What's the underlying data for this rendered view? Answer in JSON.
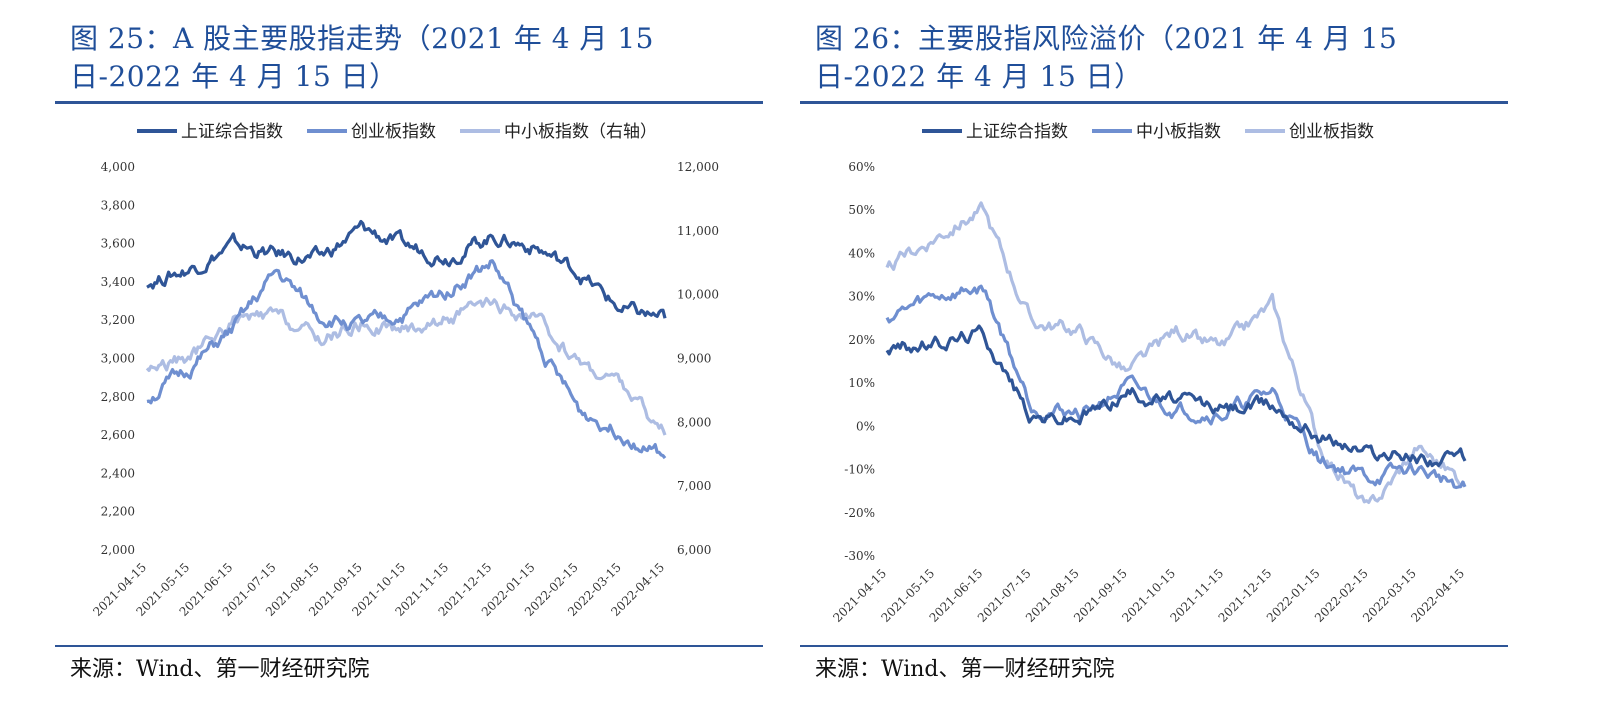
{
  "left": {
    "title": "图 25：A 股主要股指走势（2021 年 4 月 15 日-2022 年 4 月 15 日）",
    "source": "来源：Wind、第一财经研究院"
  },
  "right": {
    "title": "图 26：主要股指风险溢价（2021 年 4 月 15 日-2022 年 4 月 15 日）",
    "source": "来源：Wind、第一财经研究院"
  },
  "colors": {
    "dark": "#2f5597",
    "mid": "#6f8fd0",
    "light": "#adbde3",
    "rule": "#2e5597",
    "title": "#1f4e99"
  },
  "chart_data": [
    {
      "type": "line",
      "x": [
        "2021-04-15",
        "2021-05-15",
        "2021-06-15",
        "2021-07-15",
        "2021-08-15",
        "2021-09-15",
        "2021-10-15",
        "2021-11-15",
        "2021-12-15",
        "2022-01-15",
        "2022-02-15",
        "2022-03-15",
        "2022-04-15"
      ],
      "xticks": [
        "2021-04-15",
        "2021-05-15",
        "2021-06-15",
        "2021-07-15",
        "2021-08-15",
        "2021-09-15",
        "2021-10-15",
        "2021-11-15",
        "2021-12-15",
        "2022-01-15",
        "2022-02-15",
        "2022-03-15",
        "2022-04-15"
      ],
      "yticks": [
        "2,000",
        "2,200",
        "2,400",
        "2,600",
        "2,800",
        "3,000",
        "3,200",
        "3,400",
        "3,600",
        "3,800",
        "4,000"
      ],
      "y2ticks": [
        "6,000",
        "7,000",
        "8,000",
        "9,000",
        "10,000",
        "11,000",
        "12,000"
      ],
      "ylim": [
        2000,
        4000
      ],
      "y2lim": [
        6000,
        12000
      ],
      "series": [
        {
          "name": "上证综合指数",
          "axis": "left",
          "color": "#2f5597",
          "values": [
            3400,
            3470,
            3590,
            3540,
            3520,
            3680,
            3580,
            3540,
            3640,
            3580,
            3450,
            3250,
            3210
          ]
        },
        {
          "name": "创业板指数",
          "axis": "left",
          "color": "#6f8fd0",
          "values": [
            2790,
            2950,
            3150,
            3450,
            3220,
            3170,
            3230,
            3370,
            3500,
            3100,
            2730,
            2620,
            2480
          ]
        },
        {
          "name": "中小板指数（右轴）",
          "axis": "right",
          "color": "#adbde3",
          "values": [
            8850,
            9000,
            9580,
            9650,
            9300,
            9550,
            9450,
            9650,
            9800,
            9600,
            8950,
            8600,
            7800
          ]
        }
      ],
      "legend": "top"
    },
    {
      "type": "line",
      "x": [
        "2021-04-15",
        "2021-05-15",
        "2021-06-15",
        "2021-07-15",
        "2021-08-15",
        "2021-09-15",
        "2021-10-15",
        "2021-11-15",
        "2021-12-15",
        "2022-01-15",
        "2022-02-15",
        "2022-03-15",
        "2022-04-15"
      ],
      "xticks": [
        "2021-04-15",
        "2021-05-15",
        "2021-06-15",
        "2021-07-15",
        "2021-08-15",
        "2021-09-15",
        "2021-10-15",
        "2021-11-15",
        "2021-12-15",
        "2022-01-15",
        "2022-02-15",
        "2022-03-15",
        "2022-04-15"
      ],
      "yticks": [
        "-30%",
        "-20%",
        "-10%",
        "0%",
        "10%",
        "20%",
        "30%",
        "40%",
        "50%",
        "60%"
      ],
      "ylim": [
        -30,
        60
      ],
      "series": [
        {
          "name": "上证综合指数",
          "color": "#2f5597",
          "values": [
            18,
            19,
            22,
            2,
            2,
            8,
            6,
            4,
            5,
            -2,
            -6,
            -7,
            -8
          ]
        },
        {
          "name": "中小板指数",
          "color": "#6f8fd0",
          "values": [
            25,
            30,
            32,
            5,
            3,
            9,
            4,
            3,
            8,
            -8,
            -12,
            -10,
            -14
          ]
        },
        {
          "name": "创业板指数",
          "color": "#adbde3",
          "values": [
            36,
            44,
            50,
            24,
            22,
            12,
            22,
            18,
            28,
            -5,
            -20,
            -5,
            -13
          ]
        }
      ],
      "legend": "top"
    }
  ]
}
